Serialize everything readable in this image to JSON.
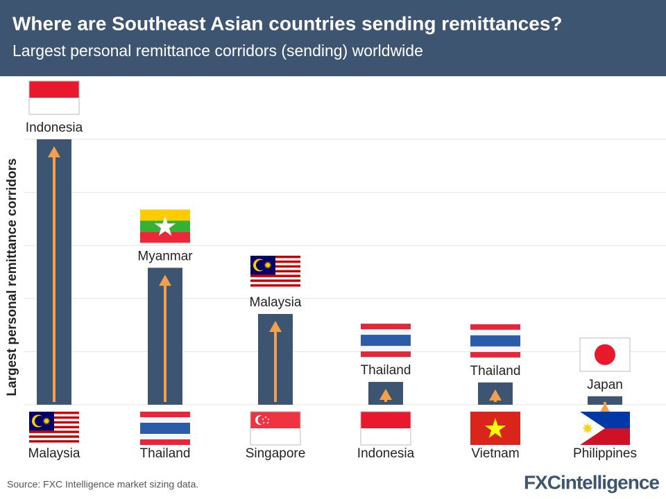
{
  "chart_data": {
    "type": "bar",
    "title": "Where are Southeast Asian countries sending remittances?",
    "subtitle": "Largest personal remittance corridors (sending) worldwide",
    "y_label": "Largest personal remittance corridors",
    "categories": [
      "Malaysia",
      "Thailand",
      "Singapore",
      "Indonesia",
      "Vietnam",
      "Philippines"
    ],
    "destinations": [
      "Indonesia",
      "Myanmar",
      "Malaysia",
      "Thailand",
      "Thailand",
      "Japan"
    ],
    "values": [
      5,
      2.58,
      1.71,
      0.43,
      0.42,
      0.16
    ],
    "color": "#3d5570",
    "arrow_color": "#f4a04b",
    "ylim": [
      0,
      5
    ],
    "yticks": [
      0,
      1,
      2,
      3,
      4,
      5
    ],
    "grid": true,
    "source": "Source: FXC Intelligence market sizing data.",
    "logo": "FXCintelligence"
  }
}
